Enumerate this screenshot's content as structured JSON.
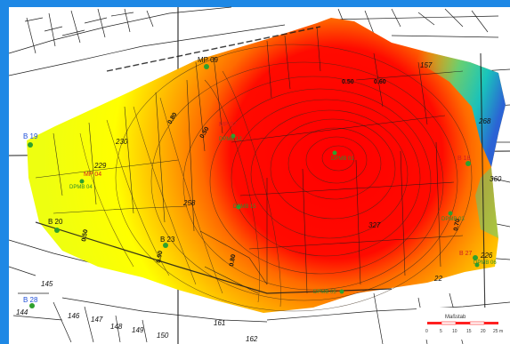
{
  "colors": {
    "frame": "#1e88e5",
    "low": "#ffff00",
    "mid": "#ff8000",
    "high": "#ff0000",
    "edge_cool": "#00c8c8"
  },
  "lot_numbers": [
    "230",
    "229",
    "258",
    "157",
    "268",
    "360",
    "327",
    "226",
    "145",
    "144",
    "146",
    "147",
    "148",
    "149",
    "150",
    "161",
    "162",
    "22"
  ],
  "isolines": [
    "0.50",
    "0.60",
    "0.50",
    "0.80",
    "0.90",
    "0.50",
    "0.70",
    "0.80"
  ],
  "points": {
    "b19": "B 19",
    "b20": "B 20",
    "b23": "B 23",
    "b28": "B 28",
    "b27": "B 27",
    "b18": "B 18",
    "mp07": "MP 07",
    "mp04": "MP 04",
    "mp09": "MP 09",
    "dpmb12": "DPMB 12",
    "dpmb04": "DPMB 04",
    "dpmb15": "DPMB 15",
    "dpmb05": "DPMB 05",
    "dpmb03": "DPMB 03",
    "dpmb06": "DPMB 06",
    "dpmb01": "DPMB 01"
  },
  "scale": {
    "title": "Maßstab",
    "ticks": [
      "0",
      "5",
      "10",
      "15",
      "20",
      "25 m"
    ]
  }
}
